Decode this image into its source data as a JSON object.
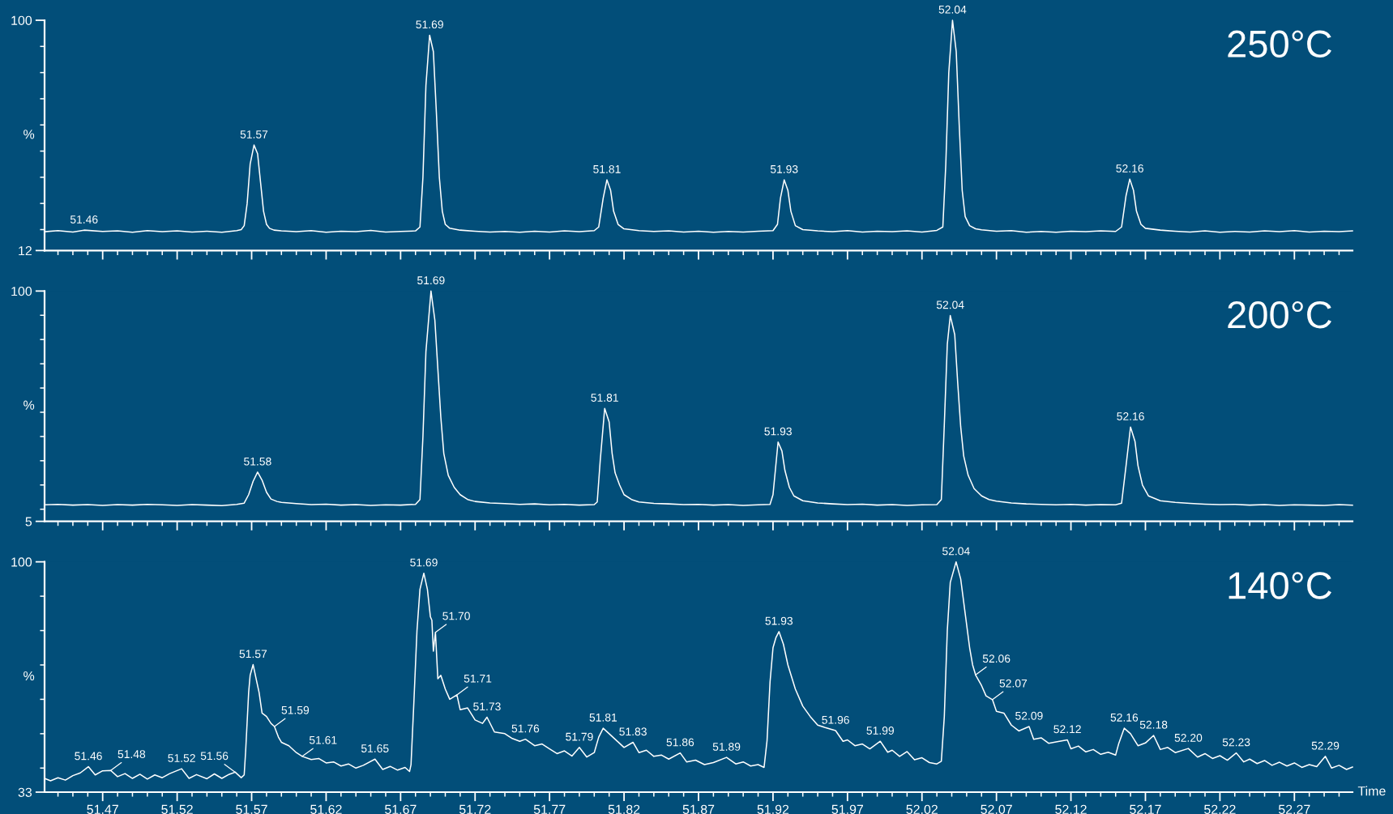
{
  "chart_data": [
    {
      "type": "line",
      "title": "250°C",
      "ylabel": "%",
      "tick_labels": "y",
      "xlim": [
        51.431,
        52.309
      ],
      "ylim": [
        12,
        100
      ],
      "yticks": [
        12,
        {
          "value": 20,
          "label": null
        },
        {
          "value": 30,
          "label": null
        },
        {
          "value": 40,
          "label": null
        },
        {
          "value": 50,
          "label": null
        },
        {
          "value": 60,
          "label": null
        },
        {
          "value": 70,
          "label": null
        },
        {
          "value": 80,
          "label": null
        },
        {
          "value": 90,
          "label": null
        },
        100
      ],
      "xticks": [
        {
          "value": 51.44,
          "label": null
        },
        {
          "value": 51.45,
          "label": null
        },
        {
          "value": 51.46,
          "label": null
        },
        51.47,
        {
          "value": 51.48,
          "label": null
        },
        {
          "value": 51.49,
          "label": null
        },
        {
          "value": 51.5,
          "label": null
        },
        {
          "value": 51.51,
          "label": null
        },
        51.52,
        {
          "value": 51.53,
          "label": null
        },
        {
          "value": 51.54,
          "label": null
        },
        {
          "value": 51.55,
          "label": null
        },
        {
          "value": 51.56,
          "label": null
        },
        51.57,
        {
          "value": 51.58,
          "label": null
        },
        {
          "value": 51.59,
          "label": null
        },
        {
          "value": 51.6,
          "label": null
        },
        {
          "value": 51.61,
          "label": null
        },
        51.62,
        {
          "value": 51.63,
          "label": null
        },
        {
          "value": 51.64,
          "label": null
        },
        {
          "value": 51.65,
          "label": null
        },
        {
          "value": 51.66,
          "label": null
        },
        51.67,
        {
          "value": 51.68,
          "label": null
        },
        {
          "value": 51.69,
          "label": null
        },
        {
          "value": 51.7,
          "label": null
        },
        {
          "value": 51.71,
          "label": null
        },
        51.72,
        {
          "value": 51.73,
          "label": null
        },
        {
          "value": 51.74,
          "label": null
        },
        {
          "value": 51.75,
          "label": null
        },
        {
          "value": 51.76,
          "label": null
        },
        51.77,
        {
          "value": 51.78,
          "label": null
        },
        {
          "value": 51.79,
          "label": null
        },
        {
          "value": 51.8,
          "label": null
        },
        {
          "value": 51.81,
          "label": null
        },
        51.82,
        {
          "value": 51.83,
          "label": null
        },
        {
          "value": 51.84,
          "label": null
        },
        {
          "value": 51.85,
          "label": null
        },
        {
          "value": 51.86,
          "label": null
        },
        51.87,
        {
          "value": 51.88,
          "label": null
        },
        {
          "value": 51.89,
          "label": null
        },
        {
          "value": 51.9,
          "label": null
        },
        {
          "value": 51.91,
          "label": null
        },
        51.92,
        {
          "value": 51.93,
          "label": null
        },
        {
          "value": 51.94,
          "label": null
        },
        {
          "value": 51.95,
          "label": null
        },
        {
          "value": 51.96,
          "label": null
        },
        51.97,
        {
          "value": 51.98,
          "label": null
        },
        {
          "value": 51.99,
          "label": null
        },
        {
          "value": 52.0,
          "label": null
        },
        {
          "value": 52.01,
          "label": null
        },
        52.02,
        {
          "value": 52.03,
          "label": null
        },
        {
          "value": 52.04,
          "label": null
        },
        {
          "value": 52.05,
          "label": null
        },
        {
          "value": 52.06,
          "label": null
        },
        52.07,
        {
          "value": 52.08,
          "label": null
        },
        {
          "value": 52.09,
          "label": null
        },
        {
          "value": 52.1,
          "label": null
        },
        {
          "value": 52.11,
          "label": null
        },
        52.12,
        {
          "value": 52.13,
          "label": null
        },
        {
          "value": 52.14,
          "label": null
        },
        {
          "value": 52.15,
          "label": null
        },
        {
          "value": 52.16,
          "label": null
        },
        52.17,
        {
          "value": 52.18,
          "label": null
        },
        {
          "value": 52.19,
          "label": null
        },
        {
          "value": 52.2,
          "label": null
        },
        {
          "value": 52.21,
          "label": null
        },
        52.22,
        {
          "value": 52.23,
          "label": null
        },
        {
          "value": 52.24,
          "label": null
        },
        {
          "value": 52.25,
          "label": null
        },
        {
          "value": 52.26,
          "label": null
        },
        52.27,
        {
          "value": 52.28,
          "label": null
        },
        {
          "value": 52.29,
          "label": null
        },
        {
          "value": 52.3,
          "label": null
        }
      ],
      "x": [
        51.431,
        51.44,
        51.45,
        51.4575,
        51.47,
        51.48,
        51.49,
        51.5,
        51.51,
        51.52,
        51.53,
        51.54,
        51.55,
        51.56,
        51.563,
        51.565,
        51.567,
        51.569,
        51.5716,
        51.574,
        51.576,
        51.578,
        51.58,
        51.582,
        51.585,
        51.59,
        51.6,
        51.61,
        51.62,
        51.63,
        51.64,
        51.65,
        51.66,
        51.67,
        51.68,
        51.683,
        51.685,
        51.687,
        51.6895,
        51.692,
        51.694,
        51.696,
        51.698,
        51.7,
        51.703,
        51.71,
        51.72,
        51.73,
        51.74,
        51.75,
        51.76,
        51.77,
        51.78,
        51.79,
        51.8,
        51.803,
        51.806,
        51.8085,
        51.811,
        51.813,
        51.816,
        51.82,
        51.83,
        51.84,
        51.85,
        51.86,
        51.87,
        51.88,
        51.89,
        51.9,
        51.91,
        51.92,
        51.923,
        51.925,
        51.9275,
        51.93,
        51.932,
        51.935,
        51.94,
        51.95,
        51.96,
        51.97,
        51.98,
        51.99,
        52.0,
        52.01,
        52.02,
        52.03,
        52.034,
        52.036,
        52.038,
        52.0405,
        52.043,
        52.045,
        52.047,
        52.049,
        52.052,
        52.056,
        52.06,
        52.07,
        52.08,
        52.09,
        52.1,
        52.11,
        52.12,
        52.13,
        52.14,
        52.15,
        52.154,
        52.157,
        52.1595,
        52.162,
        52.164,
        52.167,
        52.17,
        52.18,
        52.19,
        52.2,
        52.21,
        52.22,
        52.23,
        52.24,
        52.25,
        52.26,
        52.27,
        52.28,
        52.29,
        52.3,
        52.309
      ],
      "series": [
        {
          "color": "#ffffff",
          "values": [
            19.2,
            19.6,
            19.1,
            19.8,
            19.3,
            19.5,
            19.0,
            19.6,
            19.2,
            19.5,
            19.1,
            19.4,
            19.0,
            19.6,
            20.0,
            21.5,
            30,
            45,
            52.3,
            49,
            38,
            27,
            22,
            20.5,
            19.8,
            19.5,
            19.2,
            19.6,
            19.0,
            19.4,
            19.2,
            19.7,
            19.1,
            19.3,
            19.5,
            21,
            40,
            75,
            94.3,
            88,
            65,
            40,
            27,
            22,
            20.5,
            19.8,
            19.4,
            19.1,
            19.3,
            19.0,
            19.4,
            19.1,
            19.5,
            19.2,
            19.6,
            21,
            32,
            39,
            35,
            27,
            22,
            20.3,
            19.6,
            19.3,
            19.5,
            19.1,
            19.4,
            19.0,
            19.3,
            19.1,
            19.4,
            19.6,
            22,
            32,
            39,
            35,
            27,
            21.5,
            20.0,
            19.5,
            19.2,
            19.6,
            19.1,
            19.4,
            19.2,
            19.5,
            19.1,
            19.7,
            21,
            45,
            80,
            100,
            88,
            60,
            35,
            25,
            21.5,
            20.3,
            19.9,
            19.4,
            19.6,
            19.0,
            19.3,
            19.0,
            19.4,
            19.2,
            19.5,
            19.3,
            21,
            33,
            39.3,
            35,
            27,
            22,
            20.5,
            19.8,
            19.4,
            19.1,
            19.5,
            19.0,
            19.3,
            19.1,
            19.5,
            19.2,
            19.6,
            19.1,
            19.4,
            19.2,
            19.5
          ]
        }
      ],
      "annotations": [
        {
          "text": "51.46",
          "x": 51.4575,
          "y": 19.8
        },
        {
          "text": "51.57",
          "x": 51.5716,
          "y": 52.3
        },
        {
          "text": "51.69",
          "x": 51.6895,
          "y": 94.3
        },
        {
          "text": "51.81",
          "x": 51.8085,
          "y": 39
        },
        {
          "text": "51.93",
          "x": 51.9275,
          "y": 39
        },
        {
          "text": "52.04",
          "x": 52.0405,
          "y": 100
        },
        {
          "text": "52.16",
          "x": 52.1595,
          "y": 39.3
        }
      ]
    },
    {
      "type": "line",
      "title": "200°C",
      "ylabel": "%",
      "tick_labels": "y",
      "xlim": [
        51.431,
        52.309
      ],
      "ylim": [
        5,
        100
      ],
      "yticks": [
        5,
        {
          "value": 10,
          "label": null
        },
        {
          "value": 20,
          "label": null
        },
        {
          "value": 30,
          "label": null
        },
        {
          "value": 40,
          "label": null
        },
        {
          "value": 50,
          "label": null
        },
        {
          "value": 60,
          "label": null
        },
        {
          "value": 70,
          "label": null
        },
        {
          "value": 80,
          "label": null
        },
        {
          "value": 90,
          "label": null
        },
        100
      ],
      "xticks": [
        {
          "value": 51.44,
          "label": null
        },
        {
          "value": 51.45,
          "label": null
        },
        {
          "value": 51.46,
          "label": null
        },
        51.47,
        {
          "value": 51.48,
          "label": null
        },
        {
          "value": 51.49,
          "label": null
        },
        {
          "value": 51.5,
          "label": null
        },
        {
          "value": 51.51,
          "label": null
        },
        51.52,
        {
          "value": 51.53,
          "label": null
        },
        {
          "value": 51.54,
          "label": null
        },
        {
          "value": 51.55,
          "label": null
        },
        {
          "value": 51.56,
          "label": null
        },
        51.57,
        {
          "value": 51.58,
          "label": null
        },
        {
          "value": 51.59,
          "label": null
        },
        {
          "value": 51.6,
          "label": null
        },
        {
          "value": 51.61,
          "label": null
        },
        51.62,
        {
          "value": 51.63,
          "label": null
        },
        {
          "value": 51.64,
          "label": null
        },
        {
          "value": 51.65,
          "label": null
        },
        {
          "value": 51.66,
          "label": null
        },
        51.67,
        {
          "value": 51.68,
          "label": null
        },
        {
          "value": 51.69,
          "label": null
        },
        {
          "value": 51.7,
          "label": null
        },
        {
          "value": 51.71,
          "label": null
        },
        51.72,
        {
          "value": 51.73,
          "label": null
        },
        {
          "value": 51.74,
          "label": null
        },
        {
          "value": 51.75,
          "label": null
        },
        {
          "value": 51.76,
          "label": null
        },
        51.77,
        {
          "value": 51.78,
          "label": null
        },
        {
          "value": 51.79,
          "label": null
        },
        {
          "value": 51.8,
          "label": null
        },
        {
          "value": 51.81,
          "label": null
        },
        51.82,
        {
          "value": 51.83,
          "label": null
        },
        {
          "value": 51.84,
          "label": null
        },
        {
          "value": 51.85,
          "label": null
        },
        {
          "value": 51.86,
          "label": null
        },
        51.87,
        {
          "value": 51.88,
          "label": null
        },
        {
          "value": 51.89,
          "label": null
        },
        {
          "value": 51.9,
          "label": null
        },
        {
          "value": 51.91,
          "label": null
        },
        51.92,
        {
          "value": 51.93,
          "label": null
        },
        {
          "value": 51.94,
          "label": null
        },
        {
          "value": 51.95,
          "label": null
        },
        {
          "value": 51.96,
          "label": null
        },
        51.97,
        {
          "value": 51.98,
          "label": null
        },
        {
          "value": 51.99,
          "label": null
        },
        {
          "value": 52.0,
          "label": null
        },
        {
          "value": 52.01,
          "label": null
        },
        52.02,
        {
          "value": 52.03,
          "label": null
        },
        {
          "value": 52.04,
          "label": null
        },
        {
          "value": 52.05,
          "label": null
        },
        {
          "value": 52.06,
          "label": null
        },
        52.07,
        {
          "value": 52.08,
          "label": null
        },
        {
          "value": 52.09,
          "label": null
        },
        {
          "value": 52.1,
          "label": null
        },
        {
          "value": 52.11,
          "label": null
        },
        52.12,
        {
          "value": 52.13,
          "label": null
        },
        {
          "value": 52.14,
          "label": null
        },
        {
          "value": 52.15,
          "label": null
        },
        {
          "value": 52.16,
          "label": null
        },
        52.17,
        {
          "value": 52.18,
          "label": null
        },
        {
          "value": 52.19,
          "label": null
        },
        {
          "value": 52.2,
          "label": null
        },
        {
          "value": 52.21,
          "label": null
        },
        52.22,
        {
          "value": 52.23,
          "label": null
        },
        {
          "value": 52.24,
          "label": null
        },
        {
          "value": 52.25,
          "label": null
        },
        {
          "value": 52.26,
          "label": null
        },
        52.27,
        {
          "value": 52.28,
          "label": null
        },
        {
          "value": 52.29,
          "label": null
        },
        {
          "value": 52.3,
          "label": null
        }
      ],
      "x": [
        51.431,
        51.44,
        51.45,
        51.46,
        51.47,
        51.48,
        51.49,
        51.5,
        51.51,
        51.52,
        51.53,
        51.54,
        51.55,
        51.56,
        51.565,
        51.568,
        51.571,
        51.574,
        51.577,
        51.58,
        51.583,
        51.587,
        51.59,
        51.6,
        51.61,
        51.62,
        51.63,
        51.64,
        51.65,
        51.66,
        51.67,
        51.68,
        51.683,
        51.685,
        51.687,
        51.6904,
        51.693,
        51.695,
        51.697,
        51.699,
        51.702,
        51.706,
        51.71,
        51.715,
        51.72,
        51.73,
        51.74,
        51.75,
        51.76,
        51.77,
        51.78,
        51.79,
        51.8,
        51.802,
        51.804,
        51.807,
        51.81,
        51.812,
        51.814,
        51.817,
        51.82,
        51.825,
        51.83,
        51.84,
        51.85,
        51.86,
        51.87,
        51.88,
        51.89,
        51.9,
        51.91,
        51.918,
        51.92,
        51.9234,
        51.926,
        51.928,
        51.931,
        51.934,
        51.94,
        51.95,
        51.96,
        51.97,
        51.98,
        51.99,
        52.0,
        52.01,
        52.02,
        52.03,
        52.033,
        52.035,
        52.037,
        52.039,
        52.042,
        52.044,
        52.046,
        52.048,
        52.051,
        52.055,
        52.06,
        52.065,
        52.07,
        52.08,
        52.09,
        52.1,
        52.11,
        52.12,
        52.13,
        52.14,
        52.15,
        52.154,
        52.157,
        52.16,
        52.163,
        52.165,
        52.168,
        52.172,
        52.18,
        52.19,
        52.2,
        52.21,
        52.22,
        52.23,
        52.24,
        52.25,
        52.26,
        52.27,
        52.28,
        52.29,
        52.3,
        52.309
      ],
      "series": [
        {
          "color": "#ffffff",
          "values": [
            11.8,
            12.0,
            11.7,
            11.9,
            11.6,
            11.9,
            11.7,
            12.0,
            11.8,
            11.6,
            11.9,
            11.7,
            11.5,
            12.0,
            12.5,
            16,
            21.5,
            25.3,
            22,
            17,
            14.2,
            13.2,
            12.8,
            12.3,
            11.9,
            12.1,
            11.7,
            11.9,
            11.6,
            11.8,
            11.7,
            12.0,
            14,
            40,
            75,
            100,
            88,
            68,
            48,
            33,
            24,
            19,
            16,
            14,
            13.2,
            12.6,
            12.3,
            12.0,
            12.2,
            11.8,
            12.0,
            11.7,
            11.9,
            13,
            30,
            51.6,
            46,
            33,
            25,
            20,
            16,
            14,
            13.0,
            12.4,
            12.2,
            11.9,
            12.0,
            11.7,
            11.9,
            11.6,
            11.8,
            12.0,
            16,
            37.7,
            34,
            26,
            19,
            15.5,
            13.5,
            12.6,
            12.2,
            11.9,
            12.1,
            11.7,
            11.9,
            11.6,
            11.8,
            11.9,
            14,
            45,
            78,
            89.9,
            82,
            62,
            44,
            32,
            24,
            18.5,
            15.5,
            14,
            13.3,
            12.6,
            12.2,
            12.0,
            11.8,
            12.0,
            11.7,
            11.9,
            11.8,
            12.5,
            28,
            43.9,
            38,
            28,
            20,
            15.5,
            13.5,
            12.8,
            12.4,
            12.1,
            11.9,
            12.0,
            11.7,
            11.9,
            11.6,
            11.8,
            11.7,
            11.6,
            11.9,
            11.7
          ]
        }
      ],
      "annotations": [
        {
          "text": "51.58",
          "x": 51.574,
          "y": 25.3
        },
        {
          "text": "51.69",
          "x": 51.6904,
          "y": 100
        },
        {
          "text": "51.81",
          "x": 51.807,
          "y": 51.6
        },
        {
          "text": "51.93",
          "x": 51.9234,
          "y": 37.7
        },
        {
          "text": "52.04",
          "x": 52.039,
          "y": 89.9
        },
        {
          "text": "52.16",
          "x": 52.16,
          "y": 43.9
        }
      ]
    },
    {
      "type": "line",
      "title": "140°C",
      "ylabel": "%",
      "xlabel": "Time",
      "xlim": [
        51.431,
        52.309
      ],
      "ylim": [
        33,
        100
      ],
      "yticks": [
        33,
        {
          "value": 40,
          "label": null
        },
        {
          "value": 50,
          "label": null
        },
        {
          "value": 60,
          "label": null
        },
        {
          "value": 70,
          "label": null
        },
        {
          "value": 80,
          "label": null
        },
        {
          "value": 90,
          "label": null
        },
        100
      ],
      "xticks": [
        {
          "value": 51.44,
          "label": null
        },
        {
          "value": 51.45,
          "label": null
        },
        {
          "value": 51.46,
          "label": null
        },
        51.47,
        {
          "value": 51.48,
          "label": null
        },
        {
          "value": 51.49,
          "label": null
        },
        {
          "value": 51.5,
          "label": null
        },
        {
          "value": 51.51,
          "label": null
        },
        51.52,
        {
          "value": 51.53,
          "label": null
        },
        {
          "value": 51.54,
          "label": null
        },
        {
          "value": 51.55,
          "label": null
        },
        {
          "value": 51.56,
          "label": null
        },
        51.57,
        {
          "value": 51.58,
          "label": null
        },
        {
          "value": 51.59,
          "label": null
        },
        {
          "value": 51.6,
          "label": null
        },
        {
          "value": 51.61,
          "label": null
        },
        51.62,
        {
          "value": 51.63,
          "label": null
        },
        {
          "value": 51.64,
          "label": null
        },
        {
          "value": 51.65,
          "label": null
        },
        {
          "value": 51.66,
          "label": null
        },
        51.67,
        {
          "value": 51.68,
          "label": null
        },
        {
          "value": 51.69,
          "label": null
        },
        {
          "value": 51.7,
          "label": null
        },
        {
          "value": 51.71,
          "label": null
        },
        51.72,
        {
          "value": 51.73,
          "label": null
        },
        {
          "value": 51.74,
          "label": null
        },
        {
          "value": 51.75,
          "label": null
        },
        {
          "value": 51.76,
          "label": null
        },
        51.77,
        {
          "value": 51.78,
          "label": null
        },
        {
          "value": 51.79,
          "label": null
        },
        {
          "value": 51.8,
          "label": null
        },
        {
          "value": 51.81,
          "label": null
        },
        51.82,
        {
          "value": 51.83,
          "label": null
        },
        {
          "value": 51.84,
          "label": null
        },
        {
          "value": 51.85,
          "label": null
        },
        {
          "value": 51.86,
          "label": null
        },
        51.87,
        {
          "value": 51.88,
          "label": null
        },
        {
          "value": 51.89,
          "label": null
        },
        {
          "value": 51.9,
          "label": null
        },
        {
          "value": 51.91,
          "label": null
        },
        51.92,
        {
          "value": 51.93,
          "label": null
        },
        {
          "value": 51.94,
          "label": null
        },
        {
          "value": 51.95,
          "label": null
        },
        {
          "value": 51.96,
          "label": null
        },
        51.97,
        {
          "value": 51.98,
          "label": null
        },
        {
          "value": 51.99,
          "label": null
        },
        {
          "value": 52.0,
          "label": null
        },
        {
          "value": 52.01,
          "label": null
        },
        52.02,
        {
          "value": 52.03,
          "label": null
        },
        {
          "value": 52.04,
          "label": null
        },
        {
          "value": 52.05,
          "label": null
        },
        {
          "value": 52.06,
          "label": null
        },
        52.07,
        {
          "value": 52.08,
          "label": null
        },
        {
          "value": 52.09,
          "label": null
        },
        {
          "value": 52.1,
          "label": null
        },
        {
          "value": 52.11,
          "label": null
        },
        52.12,
        {
          "value": 52.13,
          "label": null
        },
        {
          "value": 52.14,
          "label": null
        },
        {
          "value": 52.15,
          "label": null
        },
        {
          "value": 52.16,
          "label": null
        },
        52.17,
        {
          "value": 52.18,
          "label": null
        },
        {
          "value": 52.19,
          "label": null
        },
        {
          "value": 52.2,
          "label": null
        },
        {
          "value": 52.21,
          "label": null
        },
        52.22,
        {
          "value": 52.23,
          "label": null
        },
        {
          "value": 52.24,
          "label": null
        },
        {
          "value": 52.25,
          "label": null
        },
        {
          "value": 52.26,
          "label": null
        },
        52.27,
        {
          "value": 52.28,
          "label": null
        },
        {
          "value": 52.29,
          "label": null
        },
        {
          "value": 52.3,
          "label": null
        }
      ],
      "x": [
        51.431,
        51.435,
        51.44,
        51.445,
        51.45,
        51.455,
        51.4604,
        51.465,
        51.47,
        51.4754,
        51.48,
        51.485,
        51.49,
        51.495,
        51.5,
        51.505,
        51.51,
        51.515,
        51.523,
        51.528,
        51.533,
        51.54,
        51.545,
        51.55,
        51.555,
        51.559,
        51.563,
        51.565,
        51.566,
        51.568,
        51.569,
        51.571,
        51.573,
        51.575,
        51.577,
        51.58,
        51.583,
        51.5853,
        51.588,
        51.59,
        51.595,
        51.6,
        51.604,
        51.61,
        51.615,
        51.62,
        51.625,
        51.63,
        51.635,
        51.64,
        51.645,
        51.6528,
        51.658,
        51.663,
        51.668,
        51.673,
        51.676,
        51.677,
        51.679,
        51.681,
        51.683,
        51.6856,
        51.688,
        51.69,
        51.691,
        51.692,
        51.6934,
        51.695,
        51.697,
        51.7,
        51.703,
        51.7078,
        51.71,
        51.715,
        51.72,
        51.725,
        51.728,
        51.733,
        51.74,
        51.745,
        51.75,
        51.7538,
        51.76,
        51.765,
        51.77,
        51.775,
        51.78,
        51.785,
        51.79,
        51.795,
        51.8,
        51.803,
        51.806,
        51.81,
        51.815,
        51.82,
        51.826,
        51.83,
        51.835,
        51.84,
        51.845,
        51.85,
        51.8577,
        51.862,
        51.868,
        51.874,
        51.88,
        51.8888,
        51.895,
        51.9,
        51.905,
        51.91,
        51.914,
        51.916,
        51.918,
        51.92,
        51.922,
        51.924,
        51.927,
        51.93,
        51.935,
        51.94,
        51.945,
        51.95,
        51.955,
        51.962,
        51.967,
        51.97,
        51.975,
        51.98,
        51.985,
        51.992,
        51.997,
        52.0,
        52.005,
        52.01,
        52.015,
        52.02,
        52.025,
        52.03,
        52.033,
        52.035,
        52.037,
        52.039,
        52.0429,
        52.046,
        52.049,
        52.052,
        52.054,
        52.056,
        52.06,
        52.063,
        52.0673,
        52.07,
        52.075,
        52.08,
        52.085,
        52.0919,
        52.095,
        52.1,
        52.105,
        52.11,
        52.1176,
        52.12,
        52.125,
        52.13,
        52.135,
        52.14,
        52.145,
        52.15,
        52.152,
        52.1558,
        52.16,
        52.165,
        52.17,
        52.1755,
        52.18,
        52.185,
        52.19,
        52.1988,
        52.205,
        52.21,
        52.215,
        52.22,
        52.225,
        52.231,
        52.236,
        52.24,
        52.245,
        52.25,
        52.255,
        52.26,
        52.265,
        52.27,
        52.275,
        52.28,
        52.285,
        52.2908,
        52.295,
        52.3,
        52.305,
        52.309
      ],
      "series": [
        {
          "color": "#ffffff",
          "values": [
            37.0,
            36.3,
            37.2,
            36.5,
            37.8,
            38.6,
            40.4,
            38.0,
            39.2,
            39.3,
            37.5,
            38.4,
            37.0,
            38.2,
            36.8,
            38.0,
            37.2,
            38.4,
            39.8,
            37.0,
            38.1,
            36.9,
            38.3,
            37.0,
            38.2,
            38.8,
            37.2,
            38.0,
            45,
            62,
            67,
            70.1,
            66,
            62,
            56,
            55,
            53,
            52.1,
            49,
            47.5,
            46.5,
            44.5,
            43.4,
            42.5,
            42.8,
            41.5,
            41.8,
            40.6,
            41.2,
            40.0,
            40.8,
            42.6,
            39.6,
            40.5,
            39.4,
            40.2,
            39.0,
            41,
            60,
            80,
            92,
            96.7,
            92,
            84,
            83,
            74,
            79.5,
            66,
            67,
            63,
            60,
            61.3,
            57,
            57.5,
            54,
            53,
            54.8,
            50.5,
            50,
            48.6,
            47.8,
            48.4,
            46.5,
            47,
            45.6,
            44.2,
            45.0,
            43.5,
            46.0,
            43.2,
            44.5,
            49,
            51.6,
            50,
            48,
            46,
            47.5,
            44.5,
            45.2,
            43.4,
            43.8,
            42.6,
            44.4,
            41.8,
            42.3,
            41.0,
            41.6,
            43.1,
            41.2,
            41.8,
            40.6,
            41.0,
            40.2,
            48,
            65,
            75,
            78,
            79.7,
            76,
            70,
            63,
            58,
            55,
            52.5,
            51.8,
            50.9,
            47.8,
            48.2,
            46.5,
            47.0,
            45.6,
            47.8,
            44.6,
            45.2,
            43.4,
            44.8,
            42.4,
            43.0,
            41.6,
            41.2,
            42.0,
            55,
            80,
            94,
            100,
            95,
            85,
            75,
            70,
            67.1,
            64,
            61,
            59.9,
            56.5,
            56,
            52.5,
            50.8,
            52.1,
            48.4,
            48.8,
            47.2,
            47.6,
            48.2,
            45.6,
            46.4,
            44.7,
            45.4,
            44.0,
            44.6,
            43.8,
            47,
            51.6,
            50,
            46.5,
            47.3,
            49.5,
            45.4,
            46.0,
            44.5,
            45.7,
            43.2,
            44.2,
            42.8,
            43.6,
            42.3,
            44.4,
            41.8,
            42.6,
            41.3,
            42.2,
            40.8,
            41.7,
            40.6,
            41.5,
            40.2,
            41.0,
            40.4,
            43.4,
            40.0,
            40.8,
            39.6,
            40.3
          ]
        }
      ],
      "annotations": [
        {
          "text": "51.46",
          "x": 51.4604,
          "y": 40.4
        },
        {
          "text": "51.48",
          "x": 51.4754,
          "y": 39.3
        },
        {
          "text": "51.52",
          "x": 51.523,
          "y": 39.8
        },
        {
          "text": "51.56",
          "x": 51.559,
          "y": 38.8
        },
        {
          "text": "51.57",
          "x": 51.571,
          "y": 70.1
        },
        {
          "text": "51.59",
          "x": 51.5853,
          "y": 52.1
        },
        {
          "text": "51.61",
          "x": 51.604,
          "y": 43.4
        },
        {
          "text": "51.65",
          "x": 51.6528,
          "y": 42.6
        },
        {
          "text": "51.69",
          "x": 51.6856,
          "y": 96.7
        },
        {
          "text": "51.70",
          "x": 51.6934,
          "y": 79.5
        },
        {
          "text": "51.71",
          "x": 51.7078,
          "y": 61.3
        },
        {
          "text": "51.73",
          "x": 51.728,
          "y": 54.8
        },
        {
          "text": "51.76",
          "x": 51.7538,
          "y": 48.4
        },
        {
          "text": "51.79",
          "x": 51.79,
          "y": 46.0
        },
        {
          "text": "51.81",
          "x": 51.806,
          "y": 51.6
        },
        {
          "text": "51.83",
          "x": 51.826,
          "y": 47.5
        },
        {
          "text": "51.86",
          "x": 51.8577,
          "y": 44.4
        },
        {
          "text": "51.89",
          "x": 51.8888,
          "y": 43.1
        },
        {
          "text": "51.93",
          "x": 51.924,
          "y": 79.7
        },
        {
          "text": "51.96",
          "x": 51.962,
          "y": 50.9
        },
        {
          "text": "51.99",
          "x": 51.992,
          "y": 47.8
        },
        {
          "text": "52.04",
          "x": 52.0429,
          "y": 100
        },
        {
          "text": "52.06",
          "x": 52.056,
          "y": 67.1
        },
        {
          "text": "52.07",
          "x": 52.0673,
          "y": 59.9
        },
        {
          "text": "52.09",
          "x": 52.0919,
          "y": 52.1
        },
        {
          "text": "52.12",
          "x": 52.1176,
          "y": 48.2
        },
        {
          "text": "52.16",
          "x": 52.1558,
          "y": 51.6
        },
        {
          "text": "52.18",
          "x": 52.1755,
          "y": 49.5
        },
        {
          "text": "52.20",
          "x": 52.1988,
          "y": 45.7
        },
        {
          "text": "52.23",
          "x": 52.231,
          "y": 44.4
        },
        {
          "text": "52.29",
          "x": 52.2908,
          "y": 43.4
        }
      ]
    }
  ]
}
